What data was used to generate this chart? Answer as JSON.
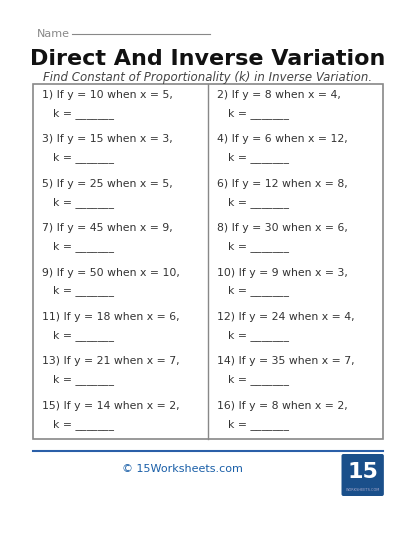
{
  "title": "Direct And Inverse Variation",
  "subtitle": "Find Constant of Proportionality (k) in Inverse Variation.",
  "name_label": "Name",
  "bg_color": "#ffffff",
  "box_color": "#ffffff",
  "border_color": "#888888",
  "title_color": "#111111",
  "subtitle_color": "#444444",
  "name_color": "#888888",
  "text_color": "#333333",
  "footer_text": "© 15Worksheets.com",
  "footer_color": "#1a5fa8",
  "problems_left": [
    "1) If y = 10 when x = 5,",
    "3) If y = 15 when x = 3,",
    "5) If y = 25 when x = 5,",
    "7) If y = 45 when x = 9,",
    "9) If y = 50 when x = 10,",
    "11) If y = 18 when x = 6,",
    "13) If y = 21 when x = 7,",
    "15) If y = 14 when x = 2,"
  ],
  "problems_right": [
    "2) If y = 8 when x = 4,",
    "4) If y = 6 when x = 12,",
    "6) If y = 12 when x = 8,",
    "8) If y = 30 when x = 6,",
    "10) If y = 9 when x = 3,",
    "12) If y = 24 when x = 4,",
    "14) If y = 35 when x = 7,",
    "16) If y = 8 when x = 2,"
  ],
  "k_label": "k = _______",
  "line_color": "#2a5fa8",
  "logo_bg": "#1a4f8a",
  "logo_text": "15",
  "logo_sub": "WORKSHEETS.COM"
}
